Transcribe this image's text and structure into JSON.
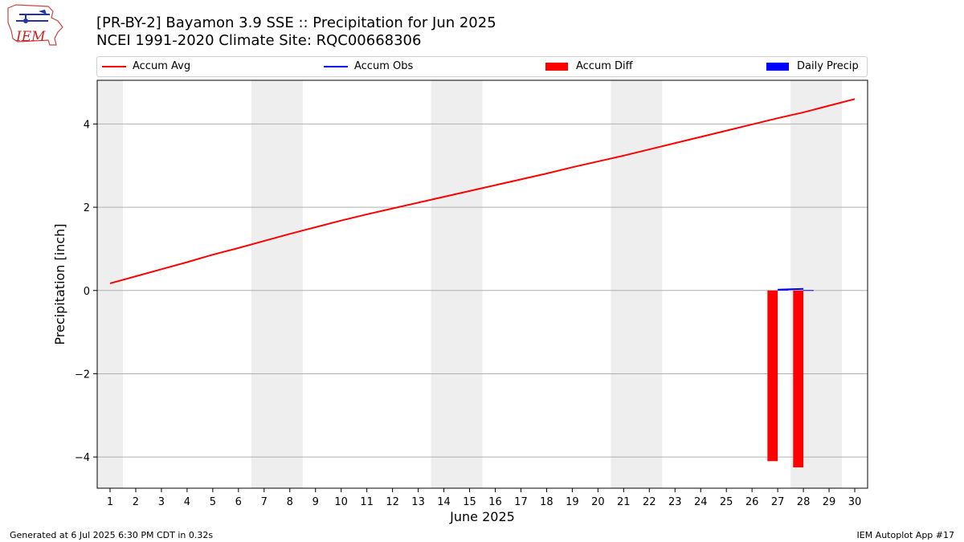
{
  "title": "[PR-BY-2] Bayamon 3.9 SSE :: Precipitation for Jun 2025",
  "subtitle": "NCEI 1991-2020 Climate Site: RQC00668306",
  "logo_text": "IEM",
  "footer_left": "Generated at 6 Jul 2025 6:30 PM CDT in 0.32s",
  "footer_right": "IEM Autoplot App #17",
  "colors": {
    "accum_avg": "#ff0000",
    "accum_obs": "#0000ff",
    "accum_diff": "#ff0000",
    "daily_precip": "#0000ff",
    "weekend_band": "#eeeeee",
    "grid": "#b0b0b0"
  },
  "legend": [
    {
      "label": "Accum Avg",
      "style": "line",
      "color": "#ff0000"
    },
    {
      "label": "Accum Obs",
      "style": "line",
      "color": "#0000ff"
    },
    {
      "label": "Accum Diff",
      "style": "bar",
      "color": "#ff0000"
    },
    {
      "label": "Daily Precip",
      "style": "bar",
      "color": "#0000ff"
    }
  ],
  "chart_data": {
    "type": "line",
    "xlabel": "June 2025",
    "ylabel": "Precipitation [inch]",
    "xlim": [
      0.5,
      30.5
    ],
    "ylim": [
      -4.75,
      5.05
    ],
    "yticks": [
      -4,
      -2,
      0,
      2,
      4
    ],
    "ytick_labels": [
      "−4",
      "−2",
      "0",
      "2",
      "4"
    ],
    "xticks": [
      1,
      2,
      3,
      4,
      5,
      6,
      7,
      8,
      9,
      10,
      11,
      12,
      13,
      14,
      15,
      16,
      17,
      18,
      19,
      20,
      21,
      22,
      23,
      24,
      25,
      26,
      27,
      28,
      29,
      30
    ],
    "xtick_labels": [
      "1",
      "2",
      "3",
      "4",
      "5",
      "6",
      "7",
      "8",
      "9",
      "10",
      "11",
      "12",
      "13",
      "14",
      "15",
      "16",
      "17",
      "18",
      "19",
      "20",
      "21",
      "22",
      "23",
      "24",
      "25",
      "26",
      "27",
      "28",
      "29",
      "30"
    ],
    "grid": "horizontal",
    "legend_position": "top",
    "weekend_shading": [
      [
        0.5,
        1.5
      ],
      [
        6.5,
        8.5
      ],
      [
        13.5,
        15.5
      ],
      [
        20.5,
        22.5
      ],
      [
        27.5,
        29.5
      ]
    ],
    "series": [
      {
        "name": "Accum Avg",
        "type": "line",
        "x": [
          1,
          2,
          3,
          4,
          5,
          6,
          7,
          8,
          9,
          10,
          11,
          12,
          13,
          14,
          15,
          16,
          17,
          18,
          19,
          20,
          21,
          22,
          23,
          24,
          25,
          26,
          27,
          28,
          29,
          30
        ],
        "values": [
          0.17,
          0.34,
          0.51,
          0.68,
          0.86,
          1.02,
          1.19,
          1.36,
          1.52,
          1.68,
          1.83,
          1.97,
          2.11,
          2.25,
          2.39,
          2.53,
          2.67,
          2.81,
          2.96,
          3.1,
          3.24,
          3.39,
          3.54,
          3.69,
          3.84,
          3.99,
          4.14,
          4.28,
          4.44,
          4.6
        ]
      },
      {
        "name": "Accum Obs",
        "type": "line",
        "x": [
          27,
          28
        ],
        "values": [
          0.02,
          0.04
        ]
      },
      {
        "name": "Accum Diff",
        "type": "bar",
        "x": [
          26.8,
          27.8
        ],
        "values": [
          -4.1,
          -4.25
        ]
      },
      {
        "name": "Daily Precip",
        "type": "bar",
        "x": [
          27.2,
          28.2
        ],
        "values": [
          0.02,
          0.01
        ]
      }
    ]
  }
}
